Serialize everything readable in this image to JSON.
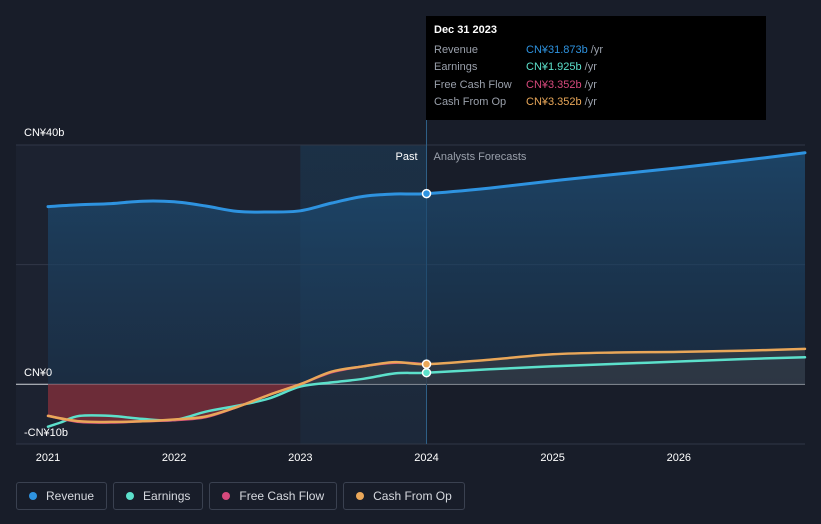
{
  "chart_data": {
    "type": "area",
    "title": "",
    "x_ticks": [
      "2021",
      "2022",
      "2023",
      "2024",
      "2025",
      "2026"
    ],
    "x_range": [
      2021,
      2027
    ],
    "y_range": [
      -10,
      40
    ],
    "y_labels": [
      {
        "value": 40,
        "text": "CN¥40b"
      },
      {
        "value": 0,
        "text": "CN¥0"
      },
      {
        "value": -10,
        "text": "-CN¥10b"
      }
    ],
    "past_label": "Past",
    "forecast_label": "Analysts Forecasts",
    "divider_x": 2024.0,
    "series": [
      {
        "name": "Revenue",
        "color": "#2e93e0",
        "points": [
          [
            2021.0,
            29.7
          ],
          [
            2021.25,
            30.0
          ],
          [
            2021.5,
            30.2
          ],
          [
            2021.75,
            30.6
          ],
          [
            2022.0,
            30.5
          ],
          [
            2022.25,
            29.8
          ],
          [
            2022.5,
            28.9
          ],
          [
            2022.75,
            28.8
          ],
          [
            2023.0,
            29.0
          ],
          [
            2023.25,
            30.3
          ],
          [
            2023.5,
            31.4
          ],
          [
            2023.75,
            31.8
          ],
          [
            2024.0,
            31.873
          ],
          [
            2024.5,
            32.8
          ],
          [
            2025.0,
            34.0
          ],
          [
            2025.5,
            35.1
          ],
          [
            2026.0,
            36.2
          ],
          [
            2026.5,
            37.4
          ],
          [
            2027.0,
            38.7
          ]
        ]
      },
      {
        "name": "Earnings",
        "color": "#5ce0cb",
        "points": [
          [
            2021.0,
            -7.1
          ],
          [
            2021.1,
            -6.4
          ],
          [
            2021.25,
            -5.3
          ],
          [
            2021.5,
            -5.3
          ],
          [
            2021.75,
            -5.8
          ],
          [
            2022.0,
            -6.0
          ],
          [
            2022.25,
            -4.6
          ],
          [
            2022.5,
            -3.6
          ],
          [
            2022.75,
            -2.4
          ],
          [
            2023.0,
            -0.4
          ],
          [
            2023.25,
            0.3
          ],
          [
            2023.5,
            0.9
          ],
          [
            2023.75,
            1.8
          ],
          [
            2024.0,
            1.925
          ],
          [
            2024.5,
            2.5
          ],
          [
            2025.0,
            3.0
          ],
          [
            2025.5,
            3.4
          ],
          [
            2026.0,
            3.8
          ],
          [
            2026.5,
            4.2
          ],
          [
            2027.0,
            4.5
          ]
        ]
      },
      {
        "name": "Free Cash Flow",
        "color": "#d6497c",
        "points": [
          [
            2021.0,
            -5.3
          ],
          [
            2021.25,
            -6.3
          ],
          [
            2021.5,
            -6.4
          ],
          [
            2021.75,
            -6.2
          ],
          [
            2022.0,
            -6.0
          ],
          [
            2022.25,
            -5.5
          ],
          [
            2022.5,
            -3.8
          ],
          [
            2022.75,
            -1.8
          ],
          [
            2023.0,
            0.0
          ],
          [
            2023.25,
            2.0
          ],
          [
            2023.5,
            3.0
          ],
          [
            2023.75,
            3.6
          ],
          [
            2024.0,
            3.352
          ]
        ]
      },
      {
        "name": "Cash From Op",
        "color": "#e9a759",
        "points": [
          [
            2021.0,
            -5.3
          ],
          [
            2021.25,
            -6.2
          ],
          [
            2021.5,
            -6.3
          ],
          [
            2021.75,
            -6.2
          ],
          [
            2022.0,
            -5.9
          ],
          [
            2022.25,
            -5.4
          ],
          [
            2022.5,
            -3.8
          ],
          [
            2022.75,
            -1.8
          ],
          [
            2023.0,
            0.0
          ],
          [
            2023.25,
            2.1
          ],
          [
            2023.5,
            3.0
          ],
          [
            2023.75,
            3.7
          ],
          [
            2024.0,
            3.352
          ],
          [
            2024.5,
            4.1
          ],
          [
            2025.0,
            5.0
          ],
          [
            2025.5,
            5.3
          ],
          [
            2026.0,
            5.4
          ],
          [
            2026.5,
            5.6
          ],
          [
            2027.0,
            5.9
          ]
        ]
      }
    ]
  },
  "tooltip": {
    "date": "Dec 31 2023",
    "rows": [
      {
        "label": "Revenue",
        "value": "CN¥31.873b",
        "unit": "/yr",
        "color": "#2e93e0"
      },
      {
        "label": "Earnings",
        "value": "CN¥1.925b",
        "unit": "/yr",
        "color": "#5ce0cb"
      },
      {
        "label": "Free Cash Flow",
        "value": "CN¥3.352b",
        "unit": "/yr",
        "color": "#d6497c"
      },
      {
        "label": "Cash From Op",
        "value": "CN¥3.352b",
        "unit": "/yr",
        "color": "#e9a759"
      }
    ]
  },
  "legend": [
    {
      "label": "Revenue",
      "color": "#2e93e0"
    },
    {
      "label": "Earnings",
      "color": "#5ce0cb"
    },
    {
      "label": "Free Cash Flow",
      "color": "#d6497c"
    },
    {
      "label": "Cash From Op",
      "color": "#e9a759"
    }
  ]
}
